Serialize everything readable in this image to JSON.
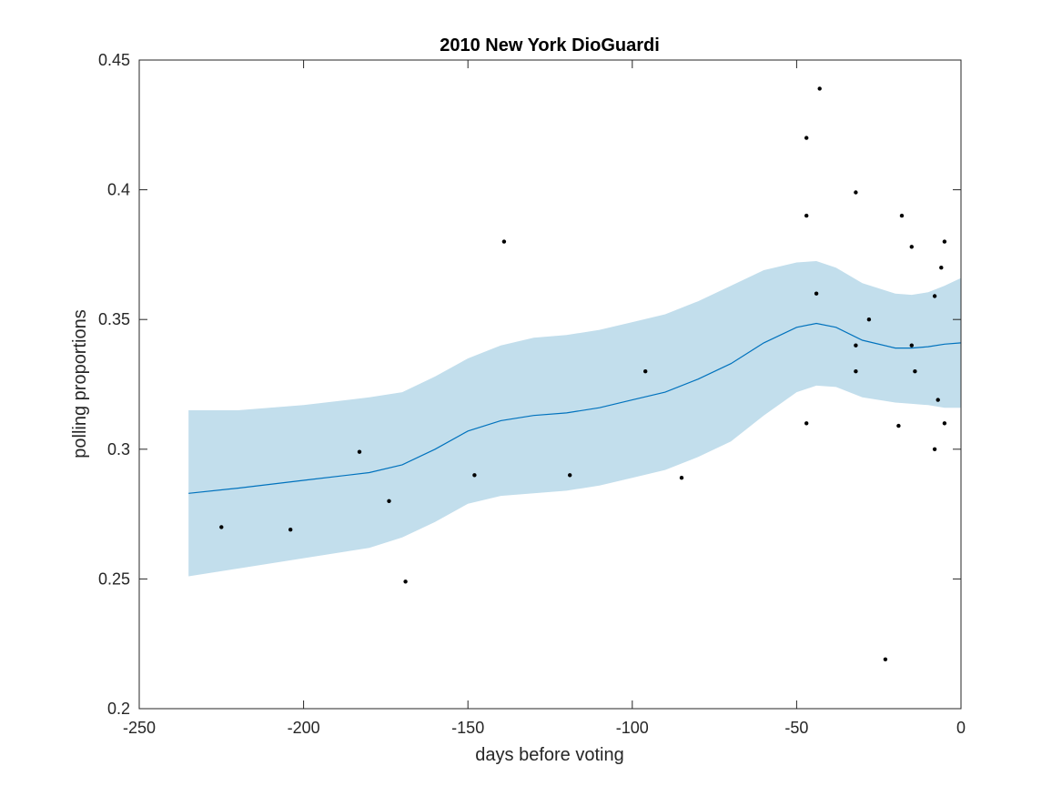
{
  "chart_data": {
    "type": "scatter",
    "title": "2010 New York DioGuardi",
    "xlabel": "days before voting",
    "ylabel": "polling proportions",
    "xlim": [
      -250,
      0
    ],
    "ylim": [
      0.2,
      0.45
    ],
    "x_ticks": [
      -250,
      -200,
      -150,
      -100,
      -50,
      0
    ],
    "y_ticks": [
      0.2,
      0.25,
      0.3,
      0.35,
      0.4,
      0.45
    ],
    "x_tick_labels": [
      "-250",
      "-200",
      "-150",
      "-100",
      "-50",
      "0"
    ],
    "y_tick_labels": [
      "0.2",
      "0.25",
      "0.3",
      "0.35",
      "0.4",
      "0.45"
    ],
    "grid": false,
    "colors": {
      "band": "#c2deec",
      "trend": "#0072bd",
      "points": "#000000",
      "axes": "#262626"
    },
    "series": [
      {
        "type": "scatter",
        "points": [
          [
            -225,
            0.27
          ],
          [
            -204,
            0.269
          ],
          [
            -183,
            0.299
          ],
          [
            -174,
            0.28
          ],
          [
            -169,
            0.249
          ],
          [
            -148,
            0.29
          ],
          [
            -139,
            0.38
          ],
          [
            -119,
            0.29
          ],
          [
            -96,
            0.33
          ],
          [
            -85,
            0.289
          ],
          [
            -47,
            0.42
          ],
          [
            -47,
            0.39
          ],
          [
            -47,
            0.31
          ],
          [
            -43,
            0.439
          ],
          [
            -44,
            0.36
          ],
          [
            -32,
            0.399
          ],
          [
            -32,
            0.34
          ],
          [
            -32,
            0.33
          ],
          [
            -28,
            0.35
          ],
          [
            -23,
            0.219
          ],
          [
            -19,
            0.309
          ],
          [
            -18,
            0.39
          ],
          [
            -15,
            0.378
          ],
          [
            -15,
            0.34
          ],
          [
            -14,
            0.33
          ],
          [
            -8,
            0.359
          ],
          [
            -8,
            0.3
          ],
          [
            -7,
            0.319
          ],
          [
            -6,
            0.37
          ],
          [
            -5,
            0.38
          ],
          [
            -5,
            0.31
          ]
        ]
      },
      {
        "type": "line",
        "points": [
          [
            -235,
            0.283
          ],
          [
            -220,
            0.285
          ],
          [
            -200,
            0.288
          ],
          [
            -180,
            0.291
          ],
          [
            -170,
            0.294
          ],
          [
            -160,
            0.3
          ],
          [
            -150,
            0.307
          ],
          [
            -140,
            0.311
          ],
          [
            -130,
            0.313
          ],
          [
            -120,
            0.314
          ],
          [
            -110,
            0.316
          ],
          [
            -100,
            0.319
          ],
          [
            -90,
            0.322
          ],
          [
            -80,
            0.327
          ],
          [
            -70,
            0.333
          ],
          [
            -60,
            0.341
          ],
          [
            -50,
            0.347
          ],
          [
            -44,
            0.3485
          ],
          [
            -38,
            0.347
          ],
          [
            -30,
            0.342
          ],
          [
            -20,
            0.339
          ],
          [
            -15,
            0.339
          ],
          [
            -10,
            0.3395
          ],
          [
            -5,
            0.3405
          ],
          [
            0,
            0.341
          ]
        ]
      },
      {
        "type": "area",
        "upper": [
          [
            -235,
            0.315
          ],
          [
            -220,
            0.315
          ],
          [
            -200,
            0.317
          ],
          [
            -180,
            0.32
          ],
          [
            -170,
            0.322
          ],
          [
            -160,
            0.328
          ],
          [
            -150,
            0.335
          ],
          [
            -140,
            0.34
          ],
          [
            -130,
            0.343
          ],
          [
            -120,
            0.344
          ],
          [
            -110,
            0.346
          ],
          [
            -100,
            0.349
          ],
          [
            -90,
            0.352
          ],
          [
            -80,
            0.357
          ],
          [
            -70,
            0.363
          ],
          [
            -60,
            0.369
          ],
          [
            -50,
            0.372
          ],
          [
            -44,
            0.3725
          ],
          [
            -38,
            0.37
          ],
          [
            -30,
            0.364
          ],
          [
            -20,
            0.36
          ],
          [
            -15,
            0.3595
          ],
          [
            -10,
            0.3605
          ],
          [
            -5,
            0.363
          ],
          [
            0,
            0.366
          ]
        ],
        "lower": [
          [
            -235,
            0.251
          ],
          [
            -220,
            0.254
          ],
          [
            -200,
            0.258
          ],
          [
            -180,
            0.262
          ],
          [
            -170,
            0.266
          ],
          [
            -160,
            0.272
          ],
          [
            -150,
            0.279
          ],
          [
            -140,
            0.282
          ],
          [
            -130,
            0.283
          ],
          [
            -120,
            0.284
          ],
          [
            -110,
            0.286
          ],
          [
            -100,
            0.289
          ],
          [
            -90,
            0.292
          ],
          [
            -80,
            0.297
          ],
          [
            -70,
            0.303
          ],
          [
            -60,
            0.313
          ],
          [
            -50,
            0.322
          ],
          [
            -44,
            0.3245
          ],
          [
            -38,
            0.324
          ],
          [
            -30,
            0.32
          ],
          [
            -20,
            0.318
          ],
          [
            -15,
            0.3175
          ],
          [
            -10,
            0.317
          ],
          [
            -5,
            0.316
          ],
          [
            0,
            0.316
          ]
        ]
      }
    ]
  }
}
